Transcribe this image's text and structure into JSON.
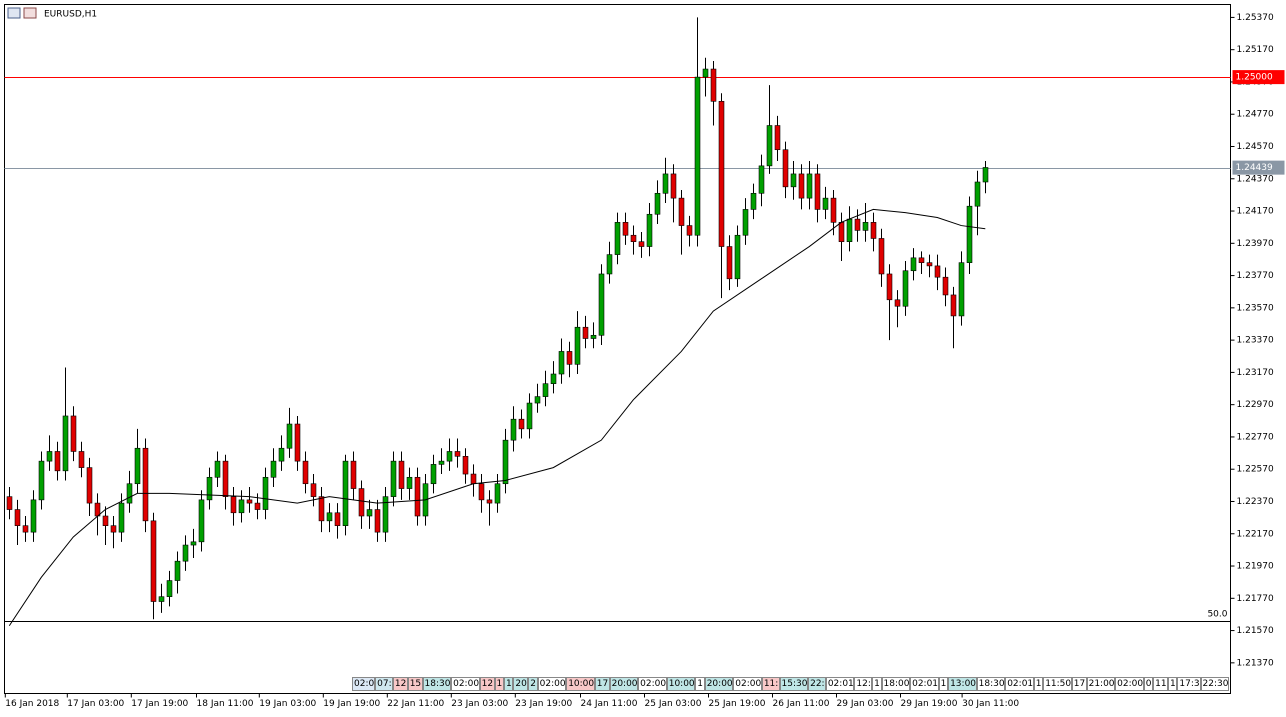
{
  "chart_data": {
    "type": "candlestick",
    "title": "EURUSD,H1",
    "up_color": "#00a000",
    "down_color": "#e00000",
    "open": [
      1.224,
      1.2232,
      1.2222,
      1.2218,
      1.2238,
      1.2262,
      1.2268,
      1.2256,
      1.229,
      1.2268,
      1.2258,
      1.2236,
      1.2228,
      1.2222,
      1.2218,
      1.2236,
      1.2248,
      1.227,
      1.2225,
      1.2175,
      1.2178,
      1.2188,
      1.22,
      1.221,
      1.2212,
      1.2238,
      1.2252,
      1.2262,
      1.224,
      1.223,
      1.2238,
      1.2236,
      1.2232,
      1.2252,
      1.2262,
      1.227,
      1.2285,
      1.2262,
      1.2248,
      1.224,
      1.2225,
      1.223,
      1.2222,
      1.2262,
      1.2245,
      1.2228,
      1.2232,
      1.2218,
      1.224,
      1.2262,
      1.2245,
      1.2252,
      1.2228,
      1.2248,
      1.226,
      1.2262,
      1.2268,
      1.2265,
      1.2254,
      1.2248,
      1.2238,
      1.2236,
      1.2248,
      1.2275,
      1.2288,
      1.2282,
      1.2298,
      1.2302,
      1.231,
      1.2316,
      1.233,
      1.2322,
      1.2345,
      1.2338,
      1.234,
      1.2378,
      1.239,
      1.241,
      1.2402,
      1.2398,
      1.2395,
      1.2415,
      1.2428,
      1.244,
      1.2425,
      1.2408,
      1.2402,
      1.25,
      1.2505,
      1.2485,
      1.2395,
      1.2375,
      1.2402,
      1.2418,
      1.2428,
      1.2445,
      1.247,
      1.2455,
      1.2432,
      1.244,
      1.2425,
      1.244,
      1.2418,
      1.2425,
      1.241,
      1.2398,
      1.2412,
      1.2405,
      1.241,
      1.24,
      1.2378,
      1.2362,
      1.2358,
      1.238,
      1.2388,
      1.2385,
      1.2383,
      1.2376,
      1.2365,
      1.2352,
      1.2385,
      1.242,
      1.2435
    ],
    "high": [
      1.2246,
      1.2238,
      1.2228,
      1.2244,
      1.2268,
      1.2278,
      1.2274,
      1.232,
      1.2296,
      1.2274,
      1.2264,
      1.2242,
      1.2234,
      1.2228,
      1.2242,
      1.2256,
      1.2282,
      1.2276,
      1.223,
      1.2186,
      1.2194,
      1.2206,
      1.2216,
      1.222,
      1.2244,
      1.2258,
      1.2268,
      1.2266,
      1.2246,
      1.2244,
      1.2246,
      1.2242,
      1.2258,
      1.227,
      1.2278,
      1.2295,
      1.229,
      1.2268,
      1.2254,
      1.2246,
      1.2236,
      1.2236,
      1.2266,
      1.2268,
      1.225,
      1.2238,
      1.2238,
      1.2246,
      1.2268,
      1.2268,
      1.2258,
      1.2258,
      1.2254,
      1.2266,
      1.227,
      1.2276,
      1.2276,
      1.227,
      1.226,
      1.2254,
      1.2244,
      1.2254,
      1.2282,
      1.2296,
      1.2294,
      1.2304,
      1.231,
      1.2318,
      1.2324,
      1.2338,
      1.2336,
      1.2355,
      1.2352,
      1.2348,
      1.2384,
      1.2398,
      1.2416,
      1.2416,
      1.2408,
      1.2404,
      1.2422,
      1.2436,
      1.245,
      1.2446,
      1.243,
      1.2414,
      1.2537,
      1.2512,
      1.251,
      1.249,
      1.2402,
      1.2408,
      1.2425,
      1.2434,
      1.2452,
      1.2495,
      1.2476,
      1.246,
      1.2448,
      1.2446,
      1.2448,
      1.2446,
      1.2432,
      1.243,
      1.2416,
      1.242,
      1.2418,
      1.2422,
      1.2416,
      1.2406,
      1.2384,
      1.2368,
      1.2386,
      1.2394,
      1.2392,
      1.239,
      1.239,
      1.2382,
      1.237,
      1.2392,
      1.2426,
      1.2442,
      1.2448
    ],
    "low": [
      1.2226,
      1.221,
      1.2212,
      1.2212,
      1.2232,
      1.2256,
      1.225,
      1.225,
      1.2262,
      1.2252,
      1.2228,
      1.2216,
      1.221,
      1.2208,
      1.2212,
      1.223,
      1.2242,
      1.2218,
      1.2164,
      1.2168,
      1.2172,
      1.218,
      1.2194,
      1.2202,
      1.2206,
      1.2232,
      1.2246,
      1.2232,
      1.2222,
      1.2224,
      1.223,
      1.2226,
      1.2226,
      1.2246,
      1.2256,
      1.2264,
      1.2256,
      1.2242,
      1.2234,
      1.2218,
      1.2218,
      1.2214,
      1.2216,
      1.2238,
      1.222,
      1.222,
      1.2212,
      1.2212,
      1.2234,
      1.2238,
      1.2238,
      1.2222,
      1.2222,
      1.2242,
      1.2254,
      1.2256,
      1.2258,
      1.2248,
      1.224,
      1.223,
      1.2222,
      1.223,
      1.2242,
      1.2268,
      1.2276,
      1.2276,
      1.2292,
      1.2296,
      1.2304,
      1.231,
      1.2314,
      1.2316,
      1.2332,
      1.2332,
      1.2334,
      1.2372,
      1.2384,
      1.2396,
      1.239,
      1.2388,
      1.2389,
      1.2409,
      1.2422,
      1.241,
      1.239,
      1.2395,
      1.2395,
      1.2488,
      1.247,
      1.2363,
      1.2368,
      1.237,
      1.2396,
      1.2412,
      1.242,
      1.244,
      1.2448,
      1.2425,
      1.2424,
      1.2418,
      1.2418,
      1.241,
      1.2412,
      1.2402,
      1.2386,
      1.2392,
      1.2398,
      1.2398,
      1.2392,
      1.237,
      1.2337,
      1.2345,
      1.2352,
      1.2374,
      1.2378,
      1.2376,
      1.2368,
      1.2358,
      1.2332,
      1.2346,
      1.2378,
      1.2402,
      1.2428
    ],
    "close": [
      1.2232,
      1.2222,
      1.2218,
      1.2238,
      1.2262,
      1.2268,
      1.2256,
      1.229,
      1.2268,
      1.2258,
      1.2236,
      1.2228,
      1.2222,
      1.2218,
      1.2236,
      1.2248,
      1.227,
      1.2225,
      1.2175,
      1.2178,
      1.2188,
      1.22,
      1.221,
      1.2212,
      1.2238,
      1.2252,
      1.2262,
      1.224,
      1.223,
      1.2238,
      1.2236,
      1.2232,
      1.2252,
      1.2262,
      1.227,
      1.2285,
      1.2262,
      1.2248,
      1.224,
      1.2225,
      1.223,
      1.2222,
      1.2262,
      1.2245,
      1.2228,
      1.2232,
      1.2218,
      1.224,
      1.2262,
      1.2245,
      1.2252,
      1.2228,
      1.2248,
      1.226,
      1.2262,
      1.2268,
      1.2265,
      1.2254,
      1.2248,
      1.2238,
      1.2236,
      1.2248,
      1.2275,
      1.2288,
      1.2282,
      1.2298,
      1.2302,
      1.231,
      1.2316,
      1.233,
      1.2322,
      1.2345,
      1.2338,
      1.234,
      1.2378,
      1.239,
      1.241,
      1.2402,
      1.2398,
      1.2395,
      1.2415,
      1.2428,
      1.244,
      1.2425,
      1.2408,
      1.2402,
      1.25,
      1.2505,
      1.2485,
      1.2395,
      1.2375,
      1.2402,
      1.2418,
      1.2428,
      1.2445,
      1.247,
      1.2455,
      1.2432,
      1.244,
      1.2425,
      1.244,
      1.2418,
      1.2425,
      1.241,
      1.2398,
      1.2412,
      1.2405,
      1.241,
      1.24,
      1.2378,
      1.2362,
      1.2358,
      1.238,
      1.2388,
      1.2385,
      1.2383,
      1.2376,
      1.2365,
      1.2352,
      1.2385,
      1.242,
      1.2435,
      1.2444
    ],
    "ylim": [
      1.2118,
      1.2545
    ],
    "yticks": [
      {
        "value": 1.2537,
        "label": "1.25370"
      },
      {
        "value": 1.2517,
        "label": "1.25170"
      },
      {
        "value": 1.2497,
        "label": "1.24970"
      },
      {
        "value": 1.2477,
        "label": "1.24770"
      },
      {
        "value": 1.2457,
        "label": "1.24570"
      },
      {
        "value": 1.2437,
        "label": "1.24370"
      },
      {
        "value": 1.2417,
        "label": "1.24170"
      },
      {
        "value": 1.2397,
        "label": "1.23970"
      },
      {
        "value": 1.2377,
        "label": "1.23770"
      },
      {
        "value": 1.2357,
        "label": "1.23570"
      },
      {
        "value": 1.2337,
        "label": "1.23370"
      },
      {
        "value": 1.2317,
        "label": "1.23170"
      },
      {
        "value": 1.2297,
        "label": "1.22970"
      },
      {
        "value": 1.2277,
        "label": "1.22770"
      },
      {
        "value": 1.2257,
        "label": "1.22570"
      },
      {
        "value": 1.2237,
        "label": "1.22370"
      },
      {
        "value": 1.2217,
        "label": "1.22170"
      },
      {
        "value": 1.2197,
        "label": "1.21970"
      },
      {
        "value": 1.2177,
        "label": "1.21770"
      },
      {
        "value": 1.2157,
        "label": "1.21570"
      },
      {
        "value": 1.2137,
        "label": "1.21370"
      }
    ],
    "xlim": [
      -0.6,
      152.65
    ],
    "xticks": [
      {
        "value": -0.5,
        "label": "16 Jan 2018"
      },
      {
        "value": 7.25,
        "label": "17 Jan 03:00"
      },
      {
        "value": 15.25,
        "label": "17 Jan 19:00"
      },
      {
        "value": 23.4,
        "label": "18 Jan 11:00"
      },
      {
        "value": 31.25,
        "label": "19 Jan 03:00"
      },
      {
        "value": 39.25,
        "label": "19 Jan 19:00"
      },
      {
        "value": 47.25,
        "label": "22 Jan 11:00"
      },
      {
        "value": 55.25,
        "label": "23 Jan 03:00"
      },
      {
        "value": 63.25,
        "label": "23 Jan 19:00"
      },
      {
        "value": 71.4,
        "label": "24 Jan 11:00"
      },
      {
        "value": 79.4,
        "label": "25 Jan 03:00"
      },
      {
        "value": 87.4,
        "label": "25 Jan 19:00"
      },
      {
        "value": 95.4,
        "label": "26 Jan 11:00"
      },
      {
        "value": 103.4,
        "label": "29 Jan 03:00"
      },
      {
        "value": 111.4,
        "label": "29 Jan 19:00"
      },
      {
        "value": 119.1,
        "label": "30 Jan 11:00"
      }
    ],
    "ma": {
      "color": "#000000",
      "x": [
        0,
        4,
        8,
        12,
        16,
        20,
        30,
        36,
        40,
        46,
        52,
        58,
        62,
        68,
        74,
        78,
        84,
        88,
        94,
        100,
        104,
        108,
        112,
        116,
        119,
        122
      ],
      "values": [
        1.216,
        1.219,
        1.2215,
        1.2232,
        1.2242,
        1.2242,
        1.224,
        1.2236,
        1.224,
        1.2236,
        1.2238,
        1.2248,
        1.225,
        1.2258,
        1.2275,
        1.23,
        1.233,
        1.2355,
        1.2375,
        1.2395,
        1.241,
        1.2418,
        1.2416,
        1.2413,
        1.2408,
        1.2406
      ]
    },
    "levels": [
      {
        "value": 1.25,
        "label": "1.25000",
        "color": "#ff0000"
      },
      {
        "value": 1.24439,
        "label": "1.24439",
        "color": "#8a97a5"
      },
      {
        "value": 1.2163,
        "label": "50.0",
        "color": "#000000"
      }
    ],
    "events": [
      {
        "label": "02:0",
        "color": "#dce8f5"
      },
      {
        "label": "07:",
        "color": "#cfe8ef"
      },
      {
        "label": "12",
        "color": "#f8c8c8"
      },
      {
        "label": "15",
        "color": "#f8c8c8"
      },
      {
        "label": "18:30",
        "color": "#bfe6e6"
      },
      {
        "label": "02:00",
        "color": "#ffffff"
      },
      {
        "label": "12",
        "color": "#f8c8c8"
      },
      {
        "label": "1",
        "color": "#f8c8c8"
      },
      {
        "label": "1",
        "color": "#bfe6e6"
      },
      {
        "label": "20",
        "color": "#bfe6e6"
      },
      {
        "label": "2",
        "color": "#bfe6e6"
      },
      {
        "label": "02:00",
        "color": "#ffffff"
      },
      {
        "label": "10:00",
        "color": "#f8c8c8"
      },
      {
        "label": "17",
        "color": "#bfe6e6"
      },
      {
        "label": "20:00",
        "color": "#bfe6e6"
      },
      {
        "label": "02:00",
        "color": "#ffffff"
      },
      {
        "label": "10:00",
        "color": "#bfe6e6"
      },
      {
        "label": "1",
        "color": "#ffffff"
      },
      {
        "label": "20:00",
        "color": "#bfe6e6"
      },
      {
        "label": "02:00",
        "color": "#ffffff"
      },
      {
        "label": "11:",
        "color": "#f8c8c8"
      },
      {
        "label": "15:30",
        "color": "#bfe6e6"
      },
      {
        "label": "22:",
        "color": "#bfe6e6"
      },
      {
        "label": "02:01",
        "color": "#ffffff"
      },
      {
        "label": "12:",
        "color": "#ffffff"
      },
      {
        "label": "1",
        "color": "#ffffff"
      },
      {
        "label": "18:00",
        "color": "#ffffff"
      },
      {
        "label": "02:01",
        "color": "#ffffff"
      },
      {
        "label": "1",
        "color": "#ffffff"
      },
      {
        "label": "13:00",
        "color": "#bfe6e6"
      },
      {
        "label": "18:30",
        "color": "#ffffff"
      },
      {
        "label": "02:01",
        "color": "#ffffff"
      },
      {
        "label": "1",
        "color": "#ffffff"
      },
      {
        "label": "11:50",
        "color": "#ffffff"
      },
      {
        "label": "17",
        "color": "#ffffff"
      },
      {
        "label": "21:00",
        "color": "#ffffff"
      },
      {
        "label": "02:00",
        "color": "#ffffff"
      },
      {
        "label": "0",
        "color": "#ffffff"
      },
      {
        "label": "11",
        "color": "#ffffff"
      },
      {
        "label": "1",
        "color": "#ffffff"
      },
      {
        "label": "17:3",
        "color": "#ffffff"
      },
      {
        "label": "22:30",
        "color": "#ffffff"
      }
    ]
  }
}
